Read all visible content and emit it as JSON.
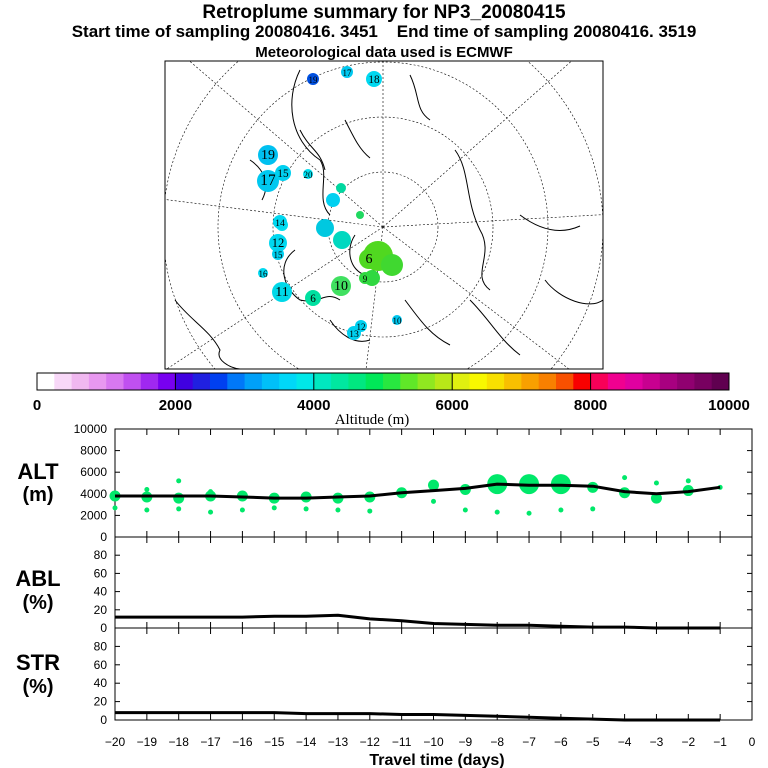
{
  "title": "Retroplume summary for NP3_20080415",
  "start_label": "Start time of sampling 20080416.  3451",
  "end_label": "End time of sampling 20080416.  3519",
  "met_label": "Meteorological data used is ECMWF",
  "colors": {
    "scale": [
      "#ffffff",
      "#f8d8f8",
      "#f0b8f0",
      "#e898f0",
      "#d878f0",
      "#c050f0",
      "#a028f0",
      "#7800f0",
      "#4000e0",
      "#2020e0",
      "#0040f0",
      "#0078f8",
      "#00a0f8",
      "#00c0f8",
      "#00d8f8",
      "#00e8e8",
      "#00e8c0",
      "#00e8a0",
      "#00e880",
      "#00e858",
      "#28e840",
      "#60e828",
      "#90e820",
      "#b8e818",
      "#e0f010",
      "#f8f800",
      "#f8e000",
      "#f8c000",
      "#f8a000",
      "#f88000",
      "#f85000",
      "#f80000",
      "#f80058",
      "#f00090",
      "#e000a0",
      "#c80090",
      "#a80080",
      "#900070",
      "#780060",
      "#600050"
    ],
    "marker": "#00e86a"
  },
  "map": {
    "points": [
      {
        "label": "19",
        "color": "#0050e0"
      },
      {
        "label": "17",
        "color": "#00c8f0"
      },
      {
        "label": "18",
        "color": "#00d8f0"
      },
      {
        "label": "19",
        "color": "#00c0f0"
      },
      {
        "label": "17",
        "color": "#00c8f0"
      },
      {
        "label": "15",
        "color": "#00d0f0"
      },
      {
        "label": "20",
        "color": "#00e0f0"
      },
      {
        "label": "14",
        "color": "#00d8f0"
      },
      {
        "label": "12",
        "color": "#00d8f0"
      },
      {
        "label": "15",
        "color": "#00d0f0"
      },
      {
        "label": "11",
        "color": "#00d8e8"
      },
      {
        "label": "6",
        "color": "#00e0a0"
      },
      {
        "label": "10",
        "color": "#40e060"
      },
      {
        "label": "6",
        "color": "#50d820"
      },
      {
        "label": "9",
        "color": "#30d840"
      },
      {
        "label": "13",
        "color": "#00d0f0"
      },
      {
        "label": "12",
        "color": "#00d0f0"
      },
      {
        "label": "10",
        "color": "#00c8f0"
      },
      {
        "label": "16",
        "color": "#00d8f0"
      }
    ]
  },
  "colorbar": {
    "tick_labels": [
      "0",
      "2000",
      "4000",
      "6000",
      "8000",
      "10000"
    ],
    "xlabel": "Altitude (m)"
  },
  "chart_data": {
    "type": "line",
    "x_label": "Travel time (days)",
    "x_ticks": [
      -20,
      -19,
      -18,
      -17,
      -16,
      -15,
      -14,
      -13,
      -12,
      -11,
      -10,
      -9,
      -8,
      -7,
      -6,
      -5,
      -4,
      -3,
      -2,
      -1,
      0
    ],
    "x_tick_labels": [
      "−20",
      "−19",
      "−18",
      "−17",
      "−16",
      "−15",
      "−14",
      "−13",
      "−12",
      "−11",
      "−10",
      "−9",
      "−8",
      "−7",
      "−6",
      "−5",
      "−4",
      "−3",
      "−2",
      "−1",
      "0"
    ],
    "x_range": [
      -20,
      0
    ],
    "panels": [
      {
        "name": "ALT",
        "ylabel_line1": "ALT",
        "ylabel_line2": "(m)",
        "yticks": [
          0,
          2000,
          4000,
          6000,
          8000,
          10000
        ],
        "ytick_labels": [
          "0",
          "2000",
          "4000",
          "6000",
          "8000",
          "10000"
        ],
        "ylim": [
          0,
          10000
        ],
        "line": {
          "x": [
            -20,
            -19,
            -18,
            -17,
            -16,
            -15,
            -14,
            -13,
            -12,
            -11,
            -10,
            -9,
            -8,
            -7,
            -6,
            -5,
            -4,
            -3,
            -2,
            -1
          ],
          "y": [
            3800,
            3800,
            3800,
            3800,
            3700,
            3600,
            3600,
            3700,
            3800,
            4100,
            4300,
            4500,
            4900,
            4800,
            4800,
            4700,
            4200,
            4000,
            4200,
            4600
          ]
        },
        "scatter": {
          "x": [
            -20,
            -20,
            -19,
            -19,
            -19,
            -18,
            -18,
            -18,
            -17,
            -17,
            -17,
            -16,
            -16,
            -15,
            -15,
            -14,
            -14,
            -13,
            -13,
            -12,
            -12,
            -11,
            -10,
            -10,
            -9,
            -9,
            -8,
            -8,
            -7,
            -7,
            -6,
            -6,
            -5,
            -5,
            -4,
            -4,
            -3,
            -3,
            -2,
            -2,
            -1
          ],
          "y": [
            3800,
            2700,
            3700,
            2500,
            4400,
            3600,
            2600,
            5200,
            3800,
            2300,
            4200,
            3800,
            2500,
            3600,
            2700,
            3700,
            2600,
            3600,
            2500,
            3700,
            2400,
            4100,
            4800,
            3300,
            4400,
            2500,
            4900,
            2300,
            4900,
            2200,
            4900,
            2500,
            4600,
            2600,
            4100,
            5500,
            3600,
            5000,
            4300,
            5200,
            4600
          ],
          "size": [
            2,
            1,
            2,
            1,
            1,
            2,
            1,
            1,
            2,
            1,
            1,
            2,
            1,
            2,
            1,
            2,
            1,
            2,
            1,
            2,
            1,
            2,
            2,
            1,
            2,
            1,
            3,
            1,
            3,
            1,
            3,
            1,
            2,
            1,
            2,
            1,
            2,
            1,
            2,
            1,
            1
          ]
        }
      },
      {
        "name": "ABL",
        "ylabel_line1": "ABL",
        "ylabel_line2": "(%)",
        "yticks": [
          0,
          20,
          40,
          60,
          80
        ],
        "ytick_labels": [
          "0",
          "20",
          "40",
          "60",
          "80"
        ],
        "ylim": [
          0,
          100
        ],
        "line": {
          "x": [
            -20,
            -19,
            -18,
            -17,
            -16,
            -15,
            -14,
            -13,
            -12,
            -11,
            -10,
            -9,
            -8,
            -7,
            -6,
            -5,
            -4,
            -3,
            -2,
            -1
          ],
          "y": [
            12,
            12,
            12,
            12,
            12,
            13,
            13,
            14,
            10,
            8,
            5,
            4,
            3,
            3,
            2,
            1,
            1,
            0,
            0,
            0
          ]
        }
      },
      {
        "name": "STR",
        "ylabel_line1": "STR",
        "ylabel_line2": "(%)",
        "yticks": [
          0,
          20,
          40,
          60,
          80
        ],
        "ytick_labels": [
          "0",
          "20",
          "40",
          "60",
          "80"
        ],
        "ylim": [
          0,
          100
        ],
        "line": {
          "x": [
            -20,
            -19,
            -18,
            -17,
            -16,
            -15,
            -14,
            -13,
            -12,
            -11,
            -10,
            -9,
            -8,
            -7,
            -6,
            -5,
            -4,
            -3,
            -2,
            -1
          ],
          "y": [
            8,
            8,
            8,
            8,
            8,
            8,
            7,
            7,
            7,
            6,
            6,
            5,
            4,
            3,
            2,
            1,
            0,
            0,
            0,
            0
          ]
        }
      }
    ]
  }
}
